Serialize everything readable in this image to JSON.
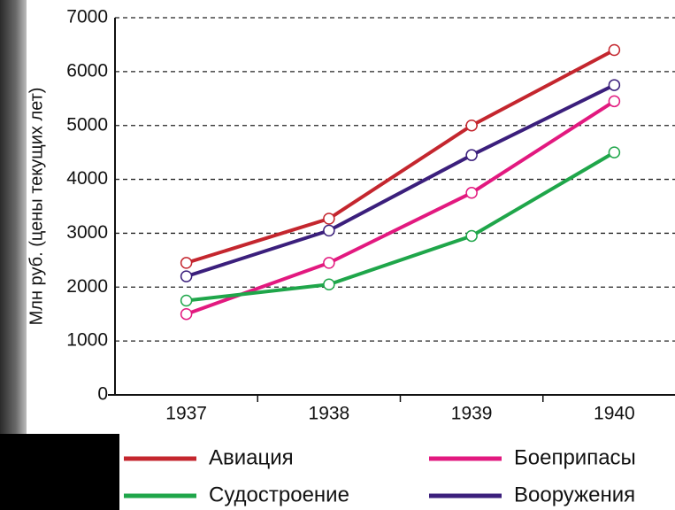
{
  "chart_data": {
    "type": "line",
    "y_label": "Млн руб. (цены текущих лет)",
    "categories": [
      "1937",
      "1938",
      "1939",
      "1940"
    ],
    "series": [
      {
        "name": "Авиация",
        "color": "#c4262e",
        "values": [
          2450,
          3270,
          5000,
          6400
        ]
      },
      {
        "name": "Боеприпасы",
        "color": "#e2197f",
        "values": [
          1500,
          2450,
          3750,
          5450
        ]
      },
      {
        "name": "Судостроение",
        "color": "#1fa64a",
        "values": [
          1750,
          2050,
          2950,
          4500
        ]
      },
      {
        "name": "Вооружения",
        "color": "#3b1f7c",
        "values": [
          2200,
          3050,
          4450,
          5750
        ]
      }
    ],
    "ylim": [
      0,
      7000
    ],
    "yticks": [
      0,
      1000,
      2000,
      3000,
      4000,
      5000,
      6000,
      7000
    ],
    "grid": true
  }
}
